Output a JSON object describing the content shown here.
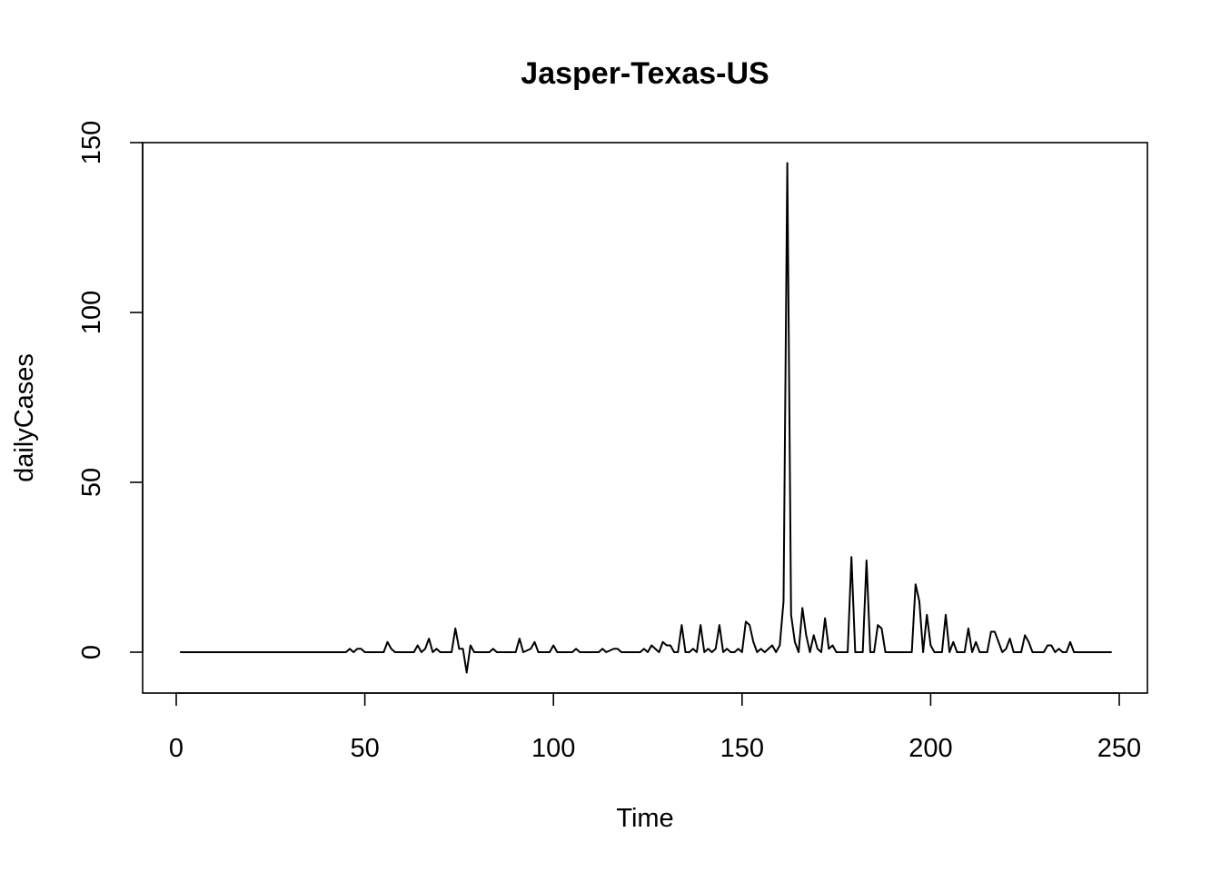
{
  "chart_data": {
    "type": "line",
    "title": "Jasper-Texas-US",
    "xlabel": "Time",
    "ylabel": "dailyCases",
    "xlim": [
      1,
      248
    ],
    "ylim": [
      -5,
      144
    ],
    "xticks": [
      0,
      50,
      100,
      150,
      200,
      250
    ],
    "yticks": [
      0,
      50,
      100,
      150
    ],
    "grid": false,
    "legend": "none",
    "series": [
      {
        "color": "#000000",
        "x": [
          1,
          45,
          46,
          47,
          48,
          49,
          50,
          55,
          56,
          57,
          58,
          63,
          64,
          65,
          66,
          67,
          68,
          69,
          70,
          73,
          74,
          75,
          76,
          77,
          78,
          79,
          83,
          84,
          85,
          90,
          91,
          92,
          94,
          95,
          96,
          99,
          100,
          101,
          105,
          106,
          107,
          112,
          113,
          114,
          116,
          117,
          118,
          119,
          123,
          124,
          125,
          126,
          127,
          128,
          129,
          130,
          131,
          132,
          133,
          134,
          135,
          136,
          137,
          138,
          139,
          140,
          141,
          142,
          143,
          144,
          145,
          146,
          147,
          148,
          149,
          150,
          151,
          152,
          153,
          154,
          155,
          156,
          157,
          158,
          159,
          160,
          161,
          162,
          163,
          164,
          165,
          166,
          167,
          168,
          169,
          170,
          171,
          172,
          173,
          174,
          175,
          176,
          177,
          178,
          179,
          180,
          181,
          182,
          183,
          184,
          185,
          186,
          187,
          188,
          189,
          195,
          196,
          197,
          198,
          199,
          200,
          201,
          202,
          203,
          204,
          205,
          206,
          207,
          208,
          209,
          210,
          211,
          212,
          213,
          214,
          215,
          216,
          217,
          218,
          219,
          220,
          221,
          222,
          224,
          225,
          226,
          227,
          230,
          231,
          232,
          233,
          234,
          235,
          236,
          237,
          238,
          248
        ],
        "y": [
          0,
          0,
          1,
          0,
          1,
          1,
          0,
          0,
          3,
          1,
          0,
          0,
          2,
          0,
          1,
          4,
          0,
          1,
          0,
          0,
          7,
          1,
          1,
          -6,
          2,
          0,
          0,
          1,
          0,
          0,
          4,
          0,
          1,
          3,
          0,
          0,
          2,
          0,
          0,
          1,
          0,
          0,
          1,
          0,
          1,
          1,
          0,
          0,
          0,
          1,
          0,
          2,
          1,
          0,
          3,
          2,
          2,
          0,
          0,
          8,
          0,
          0,
          1,
          0,
          8,
          0,
          1,
          0,
          1,
          8,
          0,
          1,
          0,
          0,
          1,
          0,
          9,
          8,
          3,
          0,
          1,
          0,
          1,
          2,
          0,
          2,
          15,
          144,
          11,
          3,
          0,
          13,
          5,
          0,
          5,
          1,
          0,
          10,
          1,
          2,
          0,
          0,
          0,
          0,
          28,
          0,
          0,
          0,
          27,
          0,
          0,
          8,
          7,
          0,
          0,
          0,
          20,
          15,
          0,
          11,
          2,
          0,
          0,
          0,
          11,
          0,
          3,
          0,
          0,
          0,
          7,
          0,
          3,
          0,
          0,
          0,
          6,
          6,
          3,
          0,
          1,
          4,
          0,
          0,
          5,
          3,
          0,
          0,
          2,
          2,
          0,
          1,
          0,
          0,
          3,
          0,
          0
        ]
      }
    ]
  }
}
